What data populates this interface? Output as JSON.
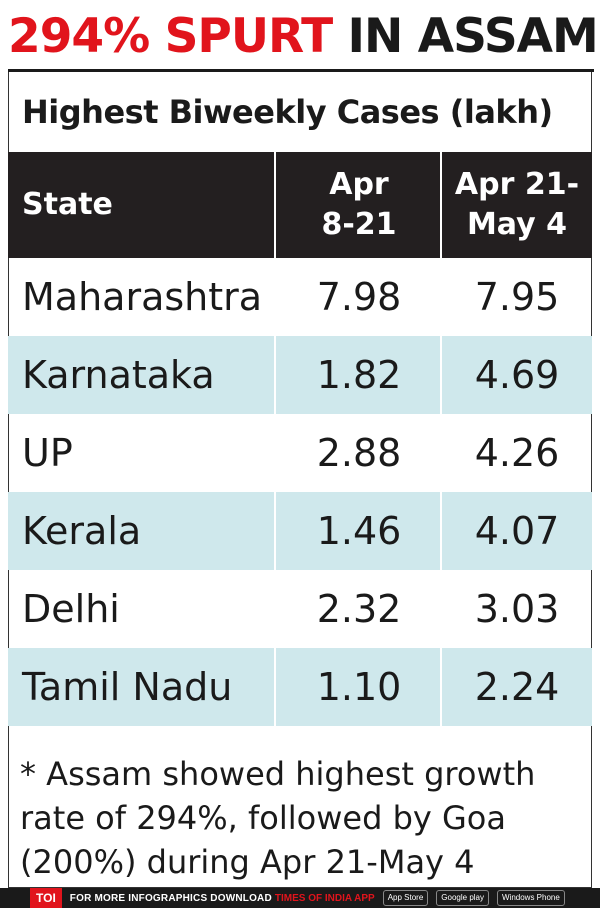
{
  "headline": {
    "part1": "294% SPURT",
    "part2": " IN ASSAM"
  },
  "subtitle": "Highest Biweekly Cases (lakh)",
  "chart_data": {
    "type": "table",
    "title": "Highest Biweekly Cases (lakh)",
    "columns": [
      "State",
      "Apr 8-21",
      "Apr 21-May 4"
    ],
    "rows": [
      {
        "state": "Maharashtra",
        "apr8_21": "7.98",
        "apr21_may4": "7.95"
      },
      {
        "state": "Karnataka",
        "apr8_21": "1.82",
        "apr21_may4": "4.69"
      },
      {
        "state": "UP",
        "apr8_21": "2.88",
        "apr21_may4": "4.26"
      },
      {
        "state": "Kerala",
        "apr8_21": "1.46",
        "apr21_may4": "4.07"
      },
      {
        "state": "Delhi",
        "apr8_21": "2.32",
        "apr21_may4": "3.03"
      },
      {
        "state": "Tamil Nadu",
        "apr8_21": "1.10",
        "apr21_may4": "2.24"
      }
    ]
  },
  "header_labels": {
    "state": "State",
    "col1_line1": "Apr",
    "col1_line2": "8-21",
    "col2_line1": "Apr 21-",
    "col2_line2": "May 4"
  },
  "footnote": "* Assam showed highest growth rate of 294%, followed by Goa (200%) during Apr 21-May 4",
  "footer": {
    "toi": "TOI",
    "text": "FOR MORE  INFOGRAPHICS DOWNLOAD",
    "brand": "TIMES OF INDIA  APP",
    "store1": "App Store",
    "store2": "Google play",
    "store3": "Windows Phone"
  },
  "colors": {
    "accent": "#e1141c",
    "header_bg": "#231f20",
    "row_shade": "#cfe8ec"
  }
}
